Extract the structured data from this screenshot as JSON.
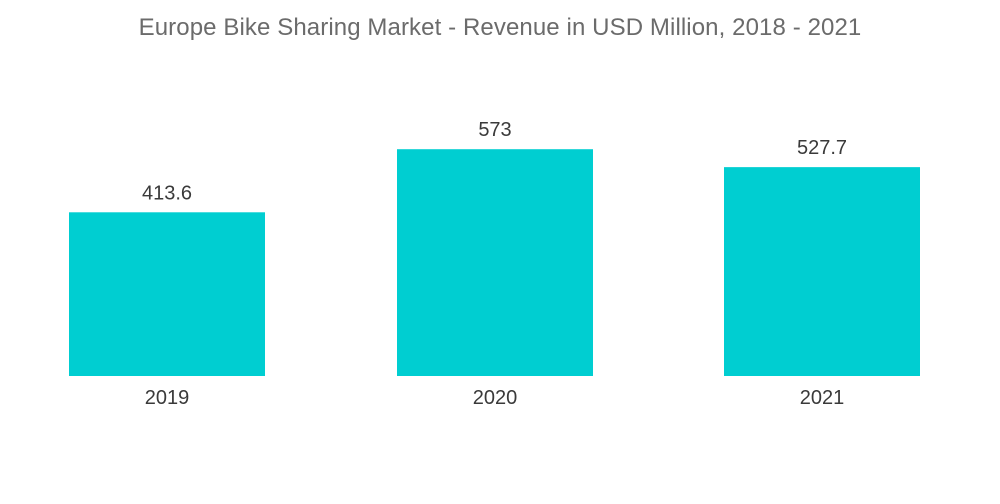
{
  "chart_data": {
    "type": "bar",
    "title": "Europe Bike Sharing Market - Revenue in USD Million, 2018 - 2021",
    "categories": [
      "2019",
      "2020",
      "2021"
    ],
    "values": [
      413.6,
      573,
      527.7
    ],
    "value_labels": [
      "413.6",
      "573",
      "527.7"
    ],
    "xlabel": "",
    "ylabel": "",
    "ylim": [
      0,
      750
    ],
    "grid": false,
    "legend": "none",
    "bar_color": "#00CED1"
  }
}
